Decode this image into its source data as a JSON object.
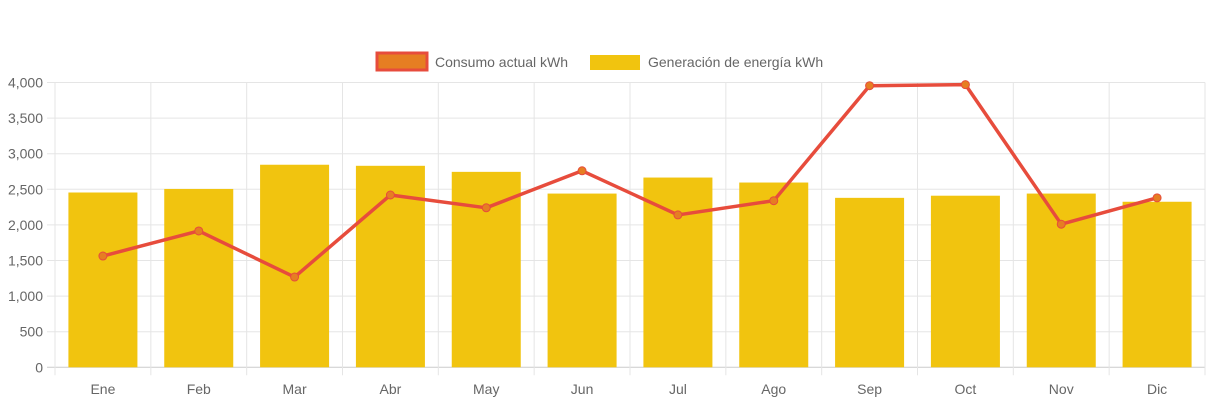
{
  "chart_data": {
    "type": "bar",
    "title": "",
    "xlabel": "",
    "ylabel": "",
    "ylim": [
      0,
      4000
    ],
    "yticks": [
      "0",
      "500",
      "1,000",
      "1,500",
      "2,000",
      "2,500",
      "3,000",
      "3,500",
      "4,000"
    ],
    "ytick_values": [
      0,
      500,
      1000,
      1500,
      2000,
      2500,
      3000,
      3500,
      4000
    ],
    "grid": true,
    "legend_position": "top-center",
    "categories": [
      "Ene",
      "Feb",
      "Mar",
      "Abr",
      "May",
      "Jun",
      "Jul",
      "Ago",
      "Sep",
      "Oct",
      "Nov",
      "Dic"
    ],
    "series": [
      {
        "name": "Consumo actual kWh",
        "type": "line",
        "color": "#e74c3c",
        "point_color": "#e67e22",
        "values": [
          1563,
          1915,
          1268,
          2420,
          2240,
          2760,
          2140,
          2340,
          3955,
          3970,
          2010,
          2380
        ]
      },
      {
        "name": "Generación de energía kWh",
        "type": "bar",
        "color": "#f1c40f",
        "values": [
          2455,
          2505,
          2845,
          2830,
          2745,
          2440,
          2665,
          2595,
          2380,
          2410,
          2440,
          2325
        ]
      }
    ]
  }
}
